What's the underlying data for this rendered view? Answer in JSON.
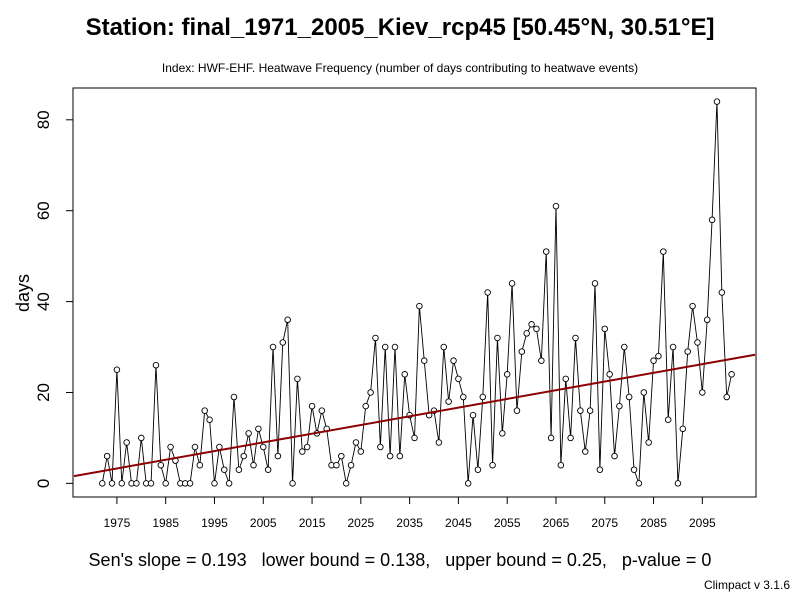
{
  "chart_data": {
    "type": "line",
    "title": "Station: final_1971_2005_Kiev_rcp45 [50.45°N, 30.51°E]",
    "subtitle": "Index: HWF-EHF. Heatwave Frequency (number of days contributing to heatwave events)",
    "xlabel": "",
    "ylabel": "days",
    "xlim": [
      1966,
      2106
    ],
    "ylim": [
      -3,
      87
    ],
    "x_ticks": [
      1975,
      1985,
      1995,
      2005,
      2015,
      2025,
      2035,
      2045,
      2055,
      2065,
      2075,
      2085,
      2095
    ],
    "y_ticks": [
      0,
      20,
      40,
      60,
      80
    ],
    "x_start": 1972,
    "series": [
      {
        "name": "HWF-EHF",
        "values": [
          0,
          6,
          0,
          25,
          0,
          9,
          0,
          0,
          10,
          0,
          0,
          26,
          4,
          0,
          8,
          5,
          0,
          0,
          0,
          8,
          4,
          16,
          14,
          0,
          8,
          3,
          0,
          19,
          3,
          6,
          11,
          4,
          12,
          8,
          3,
          30,
          6,
          31,
          36,
          0,
          23,
          7,
          8,
          17,
          11,
          16,
          12,
          4,
          4,
          6,
          0,
          4,
          9,
          7,
          17,
          20,
          32,
          8,
          30,
          6,
          30,
          6,
          24,
          15,
          10,
          39,
          27,
          15,
          16,
          9,
          30,
          18,
          27,
          23,
          19,
          0,
          15,
          3,
          19,
          42,
          4,
          32,
          11,
          24,
          44,
          16,
          29,
          33,
          35,
          34,
          27,
          51,
          10,
          61,
          4,
          23,
          10,
          32,
          16,
          7,
          16,
          44,
          3,
          34,
          24,
          6,
          17,
          30,
          19,
          3,
          0,
          20,
          9,
          27,
          28,
          51,
          14,
          30,
          0,
          12,
          29,
          39,
          31,
          20,
          36,
          58,
          84,
          42,
          19,
          24
        ]
      }
    ],
    "trend_line": {
      "name": "Sen's slope trend",
      "x": [
        1966,
        2106
      ],
      "y": [
        1.6,
        28.3
      ],
      "color": "#8b0000"
    },
    "footer": "Sen's slope = 0.193   lower bound = 0.138,   upper bound = 0.25,   p-value = 0",
    "version": "Climpact v 3.1.6"
  }
}
